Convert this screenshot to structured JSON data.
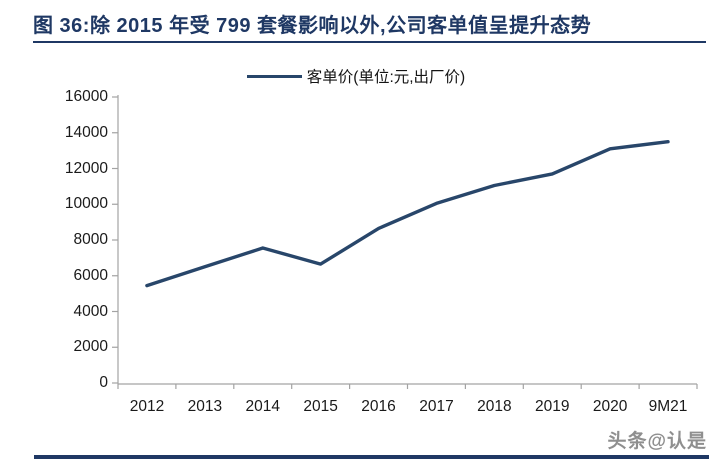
{
  "page": {
    "title": "图 36:除 2015 年受 799 套餐影响以外,公司客单值呈提升态势",
    "watermark": "头条@认是"
  },
  "colors": {
    "title_navy": "#1f3864",
    "line": "#28466a",
    "axis": "#a3a3a3",
    "tick_text": "#1a1a1a",
    "watermark_gray": "#8f8f8f"
  },
  "chart_data": {
    "type": "line",
    "title": "",
    "legend": "客单价(单位:元,出厂价)",
    "legend_position": "top-center",
    "categories": [
      "2012",
      "2013",
      "2014",
      "2015",
      "2016",
      "2017",
      "2018",
      "2019",
      "2020",
      "9M21"
    ],
    "series": [
      {
        "name": "客单价(单位:元,出厂价)",
        "values": [
          5450,
          6500,
          7550,
          6650,
          8650,
          10050,
          11050,
          11700,
          13100,
          13500
        ]
      }
    ],
    "xlabel": "",
    "ylabel": "",
    "ylim": [
      0,
      16000
    ],
    "ytick_interval": 2000,
    "yticks": [
      0,
      2000,
      4000,
      6000,
      8000,
      10000,
      12000,
      14000,
      16000
    ],
    "grid": false
  }
}
